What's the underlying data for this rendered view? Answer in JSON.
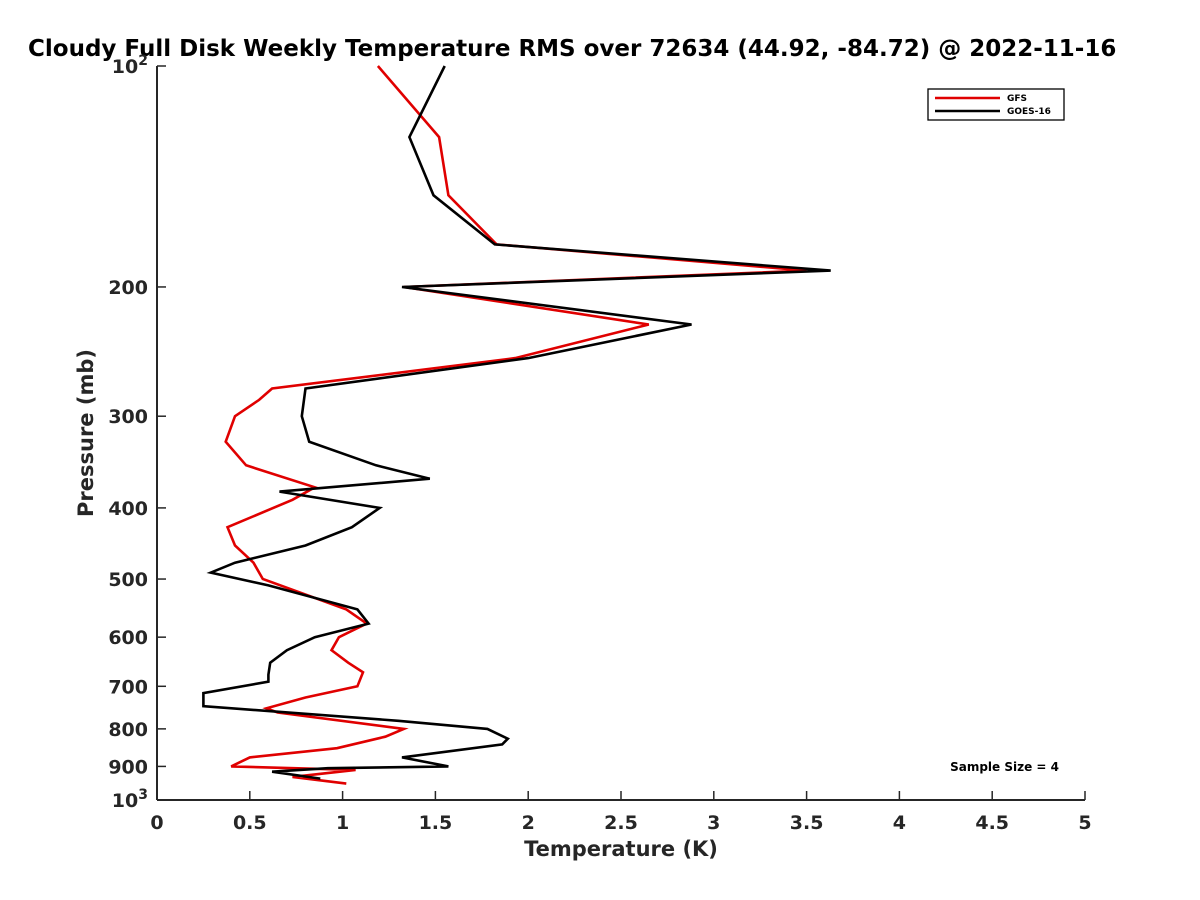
{
  "chart_data": {
    "type": "line",
    "title": "Cloudy Full Disk Weekly Temperature RMS over 72634 (44.92, -84.72) @ 2022-11-16",
    "xlabel": "Temperature (K)",
    "ylabel": "Pressure (mb)",
    "xlim": [
      0,
      5
    ],
    "ylim": [
      100,
      1000
    ],
    "y_scale": "log",
    "y_reversed": true,
    "grid": false,
    "legend_position": "top-right",
    "x_ticks": [
      "0",
      "0.5",
      "1",
      "1.5",
      "2",
      "2.5",
      "3",
      "3.5",
      "4",
      "4.5",
      "5"
    ],
    "x_tick_values": [
      0,
      0.5,
      1,
      1.5,
      2,
      2.5,
      3,
      3.5,
      4,
      4.5,
      5
    ],
    "y_ticks_plain": [
      {
        "value": 200,
        "label": "200"
      },
      {
        "value": 300,
        "label": "300"
      },
      {
        "value": 400,
        "label": "400"
      },
      {
        "value": 500,
        "label": "500"
      },
      {
        "value": 600,
        "label": "600"
      },
      {
        "value": 700,
        "label": "700"
      },
      {
        "value": 800,
        "label": "800"
      },
      {
        "value": 900,
        "label": "900"
      }
    ],
    "y_ticks_power": [
      {
        "value": 100,
        "base": "10",
        "exp": "2"
      },
      {
        "value": 1000,
        "base": "10",
        "exp": "3"
      }
    ],
    "series": [
      {
        "name": "GFS",
        "color": "#e00000",
        "points": [
          [
            1.19,
            100
          ],
          [
            1.52,
            125
          ],
          [
            1.57,
            150
          ],
          [
            1.83,
            175
          ],
          [
            3.5,
            190
          ],
          [
            1.33,
            200
          ],
          [
            2.65,
            225
          ],
          [
            1.93,
            250
          ],
          [
            0.62,
            275
          ],
          [
            0.55,
            285
          ],
          [
            0.42,
            300
          ],
          [
            0.37,
            325
          ],
          [
            0.48,
            350
          ],
          [
            0.85,
            375
          ],
          [
            0.73,
            390
          ],
          [
            0.38,
            425
          ],
          [
            0.42,
            450
          ],
          [
            0.52,
            475
          ],
          [
            0.57,
            500
          ],
          [
            1.02,
            550
          ],
          [
            1.13,
            575
          ],
          [
            0.98,
            600
          ],
          [
            0.94,
            625
          ],
          [
            1.03,
            650
          ],
          [
            1.11,
            670
          ],
          [
            1.08,
            700
          ],
          [
            0.8,
            725
          ],
          [
            0.59,
            750
          ],
          [
            0.65,
            760
          ],
          [
            1.33,
            800
          ],
          [
            1.23,
            820
          ],
          [
            0.97,
            850
          ],
          [
            0.5,
            875
          ],
          [
            0.4,
            900
          ],
          [
            1.07,
            910
          ],
          [
            0.73,
            930
          ],
          [
            1.02,
            950
          ]
        ]
      },
      {
        "name": "GOES-16",
        "color": "#000000",
        "points": [
          [
            1.55,
            100
          ],
          [
            1.36,
            125
          ],
          [
            1.49,
            150
          ],
          [
            1.82,
            175
          ],
          [
            3.63,
            190
          ],
          [
            1.32,
            200
          ],
          [
            2.88,
            225
          ],
          [
            2.0,
            250
          ],
          [
            0.8,
            275
          ],
          [
            0.78,
            300
          ],
          [
            0.82,
            325
          ],
          [
            1.18,
            350
          ],
          [
            1.47,
            365
          ],
          [
            0.66,
            380
          ],
          [
            1.2,
            400
          ],
          [
            1.05,
            425
          ],
          [
            0.8,
            450
          ],
          [
            0.42,
            475
          ],
          [
            0.29,
            490
          ],
          [
            0.6,
            510
          ],
          [
            1.08,
            550
          ],
          [
            1.14,
            575
          ],
          [
            0.85,
            600
          ],
          [
            0.7,
            625
          ],
          [
            0.61,
            650
          ],
          [
            0.6,
            675
          ],
          [
            0.6,
            690
          ],
          [
            0.25,
            715
          ],
          [
            0.25,
            745
          ],
          [
            1.3,
            780
          ],
          [
            1.78,
            800
          ],
          [
            1.89,
            825
          ],
          [
            1.86,
            840
          ],
          [
            1.32,
            875
          ],
          [
            1.57,
            900
          ],
          [
            0.92,
            905
          ],
          [
            0.62,
            915
          ],
          [
            0.88,
            935
          ]
        ]
      }
    ],
    "annotation": "Sample Size = 4"
  }
}
